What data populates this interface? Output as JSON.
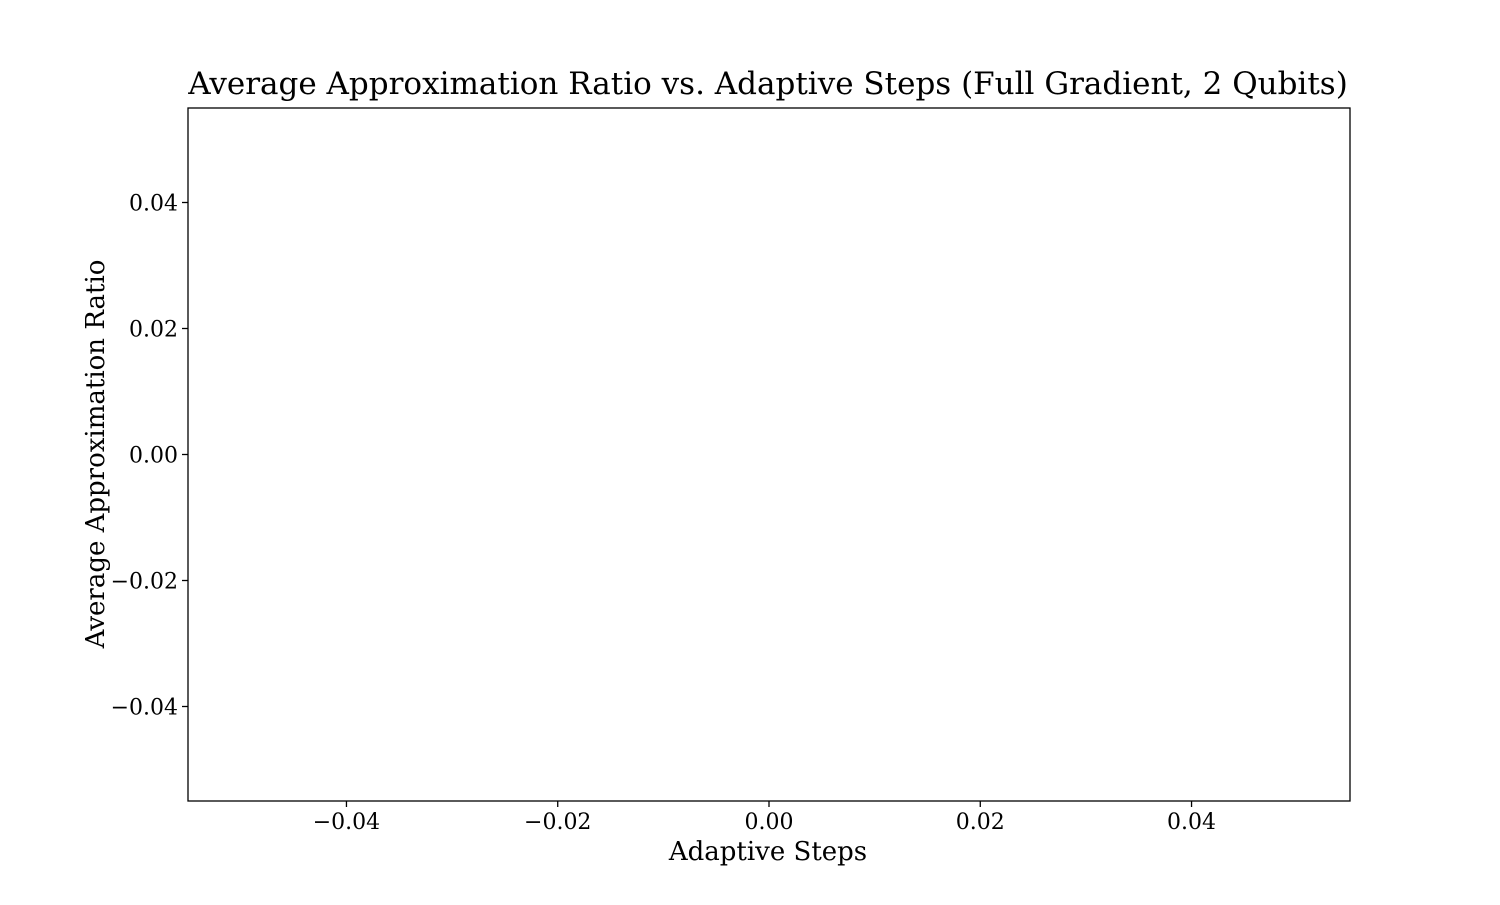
{
  "chart_data": {
    "type": "line",
    "title": "Average Approximation Ratio vs. Adaptive Steps (Full Gradient, 2 Qubits)",
    "xlabel": "Adaptive Steps",
    "ylabel": "Average Approximation Ratio",
    "xlim": [
      -0.055,
      0.055
    ],
    "ylim": [
      -0.055,
      0.055
    ],
    "x_ticks": [
      -0.04,
      -0.02,
      0.0,
      0.02,
      0.04
    ],
    "y_ticks": [
      -0.04,
      -0.02,
      0.0,
      0.02,
      0.04
    ],
    "x_tick_labels": [
      "−0.04",
      "−0.02",
      "0.00",
      "0.02",
      "0.04"
    ],
    "y_tick_labels": [
      "−0.04",
      "−0.02",
      "0.00",
      "0.02",
      "0.04"
    ],
    "series": [],
    "grid": false,
    "legend": "none"
  }
}
